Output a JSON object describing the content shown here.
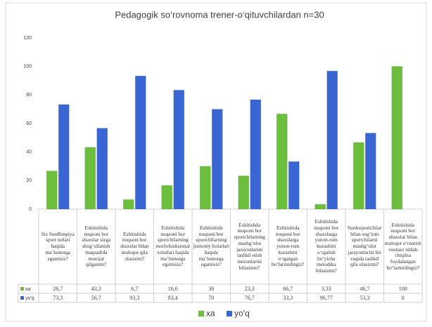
{
  "chart_data": {
    "type": "bar",
    "title": "Pedagogik so‘rovnoma trener-o‘qituvchilardan n=30",
    "categories": [
      "Siz Surdlimpiya sport turlari haqida ma’lumotga egamisiz?",
      "Eshitishida nuqsoni bor shaxslar sizga shug‘ullanish maqsadida murojat qilganmi?",
      "Eshitishida nuqsoni bor shaxslar bilan muloqot qila olasizmi?",
      "Eshitishida nuqsoni bor sportchilarning morfofunksional xolatlari haqida ma’lumotga egamisiz?",
      "Eshitishida nuqsoni bor sportchilarning jismoniy holatlari haqida ma’lumotga egamisiz?",
      "Eshitishda nuqsoni bor sportchilarning mashg‘ulot jarayonlarini tashkil etish mezonlarini bilasizmi?",
      "Eshitishida nuqsoni bor shaxslarga yunon-rum kurashini o‘rgatgan bo‘larmidingiz?",
      "Eshitishida nuqsoni bor shaxslarga yunon-rum kurashini o‘rgatish bo‘yicha metodika bilasizmi?",
      "Surdosportchilar bilan sog‘lom sportchilarni mashg‘ulot jarayonlarini bir vaqtda tashkil qila olasizmi?",
      "Eshitishida nuqsoni bor shaxslar bilan muloqot o‘rnatish vositasi ishlab chiqilsa foydalangan bo‘larmidingiz?"
    ],
    "series": [
      {
        "name": "ха",
        "color": "#6cbf3c",
        "values": [
          26.7,
          43.3,
          6.7,
          16.6,
          30,
          23.3,
          66.7,
          3.33,
          46.7,
          100
        ],
        "value_labels": [
          "26,7",
          "43,3",
          "6,7",
          "16,6",
          "30",
          "23,3",
          "66,7",
          "3,33",
          "46,7",
          "100"
        ]
      },
      {
        "name": "yo'q",
        "color": "#3a66d4",
        "values": [
          73.3,
          56.7,
          93.3,
          83.4,
          70,
          76.7,
          33.3,
          96.77,
          53.3,
          0
        ],
        "value_labels": [
          "73,3",
          "56,7",
          "93,3",
          "83,4",
          "70",
          "76,7",
          "33,3",
          "96,77",
          "53,3",
          "0"
        ]
      }
    ],
    "ylim": [
      0,
      120
    ],
    "yticks": [
      0,
      20,
      40,
      60,
      80,
      100,
      120
    ],
    "grid": false,
    "legend": "bottom"
  }
}
